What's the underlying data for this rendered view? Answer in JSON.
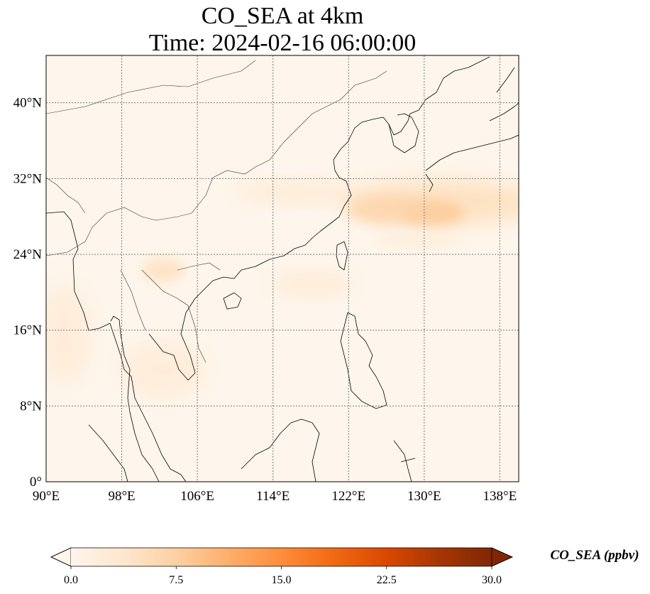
{
  "title": {
    "line1": "CO_SEA at 4km",
    "line2": "Time: 2024-02-16 06:00:00"
  },
  "map": {
    "extent": {
      "lon": [
        90,
        140
      ],
      "lat": [
        0,
        45
      ]
    },
    "lon_ticks": [
      {
        "value": 90,
        "label": "90°E"
      },
      {
        "value": 98,
        "label": "98°E"
      },
      {
        "value": 106,
        "label": "106°E"
      },
      {
        "value": 114,
        "label": "114°E"
      },
      {
        "value": 122,
        "label": "122°E"
      },
      {
        "value": 130,
        "label": "130°E"
      },
      {
        "value": 138,
        "label": "138°E"
      }
    ],
    "lat_ticks": [
      {
        "value": 0,
        "label": "0°"
      },
      {
        "value": 8,
        "label": "8°N"
      },
      {
        "value": 16,
        "label": "16°N"
      },
      {
        "value": 24,
        "label": "24°N"
      },
      {
        "value": 32,
        "label": "32°N"
      },
      {
        "value": 40,
        "label": "40°N"
      }
    ],
    "gridlines": true,
    "background_color": "#fef6ec",
    "coastline_color": "#000000",
    "border_color": "#333333"
  },
  "colorbar": {
    "title": "CO_SEA (ppbv)",
    "min": 0.0,
    "max": 30.0,
    "extend": "both",
    "ticks": [
      {
        "value": 0.0,
        "label": "0.0"
      },
      {
        "value": 7.5,
        "label": "7.5"
      },
      {
        "value": 15.0,
        "label": "15.0"
      },
      {
        "value": 22.5,
        "label": "22.5"
      },
      {
        "value": 30.0,
        "label": "30.0"
      }
    ],
    "colormap": [
      "#fff5eb",
      "#fee6ce",
      "#fdd0a2",
      "#fdae6b",
      "#fd8d3c",
      "#f16913",
      "#d94801",
      "#a63603",
      "#7f2704"
    ]
  }
}
